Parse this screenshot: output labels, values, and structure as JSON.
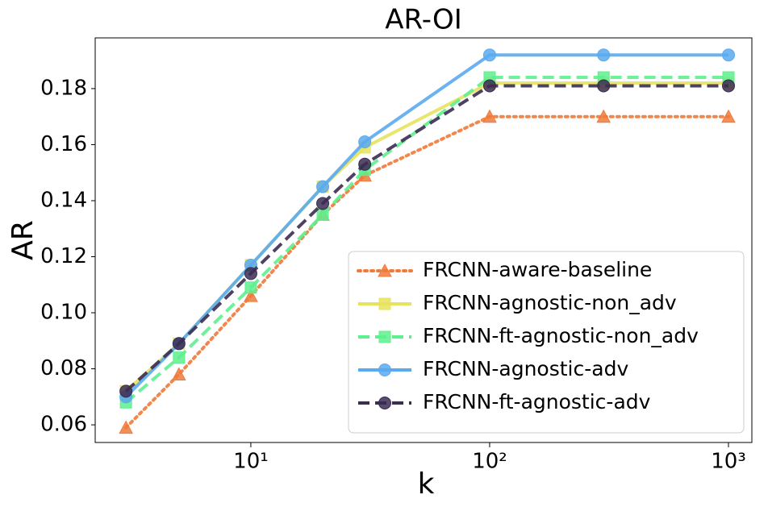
{
  "chart_data": {
    "type": "line",
    "title": "AR-OI",
    "xlabel": "k",
    "ylabel": "AR",
    "x": [
      3,
      5,
      10,
      20,
      30,
      100,
      300,
      1000
    ],
    "xscale": "log",
    "xlim": [
      2.23,
      1253
    ],
    "ylim": [
      0.0537,
      0.1981
    ],
    "xticks": [
      {
        "value": 10,
        "label": "10¹"
      },
      {
        "value": 100,
        "label": "10²"
      },
      {
        "value": 1000,
        "label": "10³"
      }
    ],
    "yticks": [
      0.06,
      0.08,
      {
        "value": 0.1,
        "label": "0.10"
      },
      0.12,
      0.14,
      0.16,
      0.18
    ],
    "legend": "lower right",
    "series": [
      {
        "name": "FRCNN-aware-baseline",
        "color": "#f07a3a",
        "marker": "triangle",
        "linestyle": "dotted",
        "values": [
          0.059,
          0.078,
          0.106,
          0.135,
          0.149,
          0.17,
          0.17,
          0.17
        ]
      },
      {
        "name": "FRCNN-agnostic-non_adv",
        "color": "#e6e35c",
        "marker": "square",
        "linestyle": "solid",
        "values": [
          0.072,
          0.089,
          0.117,
          0.145,
          0.159,
          0.182,
          0.182,
          0.182
        ]
      },
      {
        "name": "FRCNN-ft-agnostic-non_adv",
        "color": "#5ef08e",
        "marker": "square",
        "linestyle": "dashed",
        "values": [
          0.068,
          0.084,
          0.109,
          0.135,
          0.151,
          0.184,
          0.184,
          0.184
        ]
      },
      {
        "name": "FRCNN-agnostic-adv",
        "color": "#5aaaf0",
        "marker": "circle",
        "linestyle": "solid",
        "values": [
          0.07,
          0.089,
          0.117,
          0.145,
          0.161,
          0.192,
          0.192,
          0.192
        ]
      },
      {
        "name": "FRCNN-ft-agnostic-adv",
        "color": "#3b2c52",
        "marker": "circle",
        "linestyle": "dashed",
        "values": [
          0.072,
          0.089,
          0.114,
          0.139,
          0.153,
          0.181,
          0.181,
          0.181
        ]
      }
    ]
  }
}
